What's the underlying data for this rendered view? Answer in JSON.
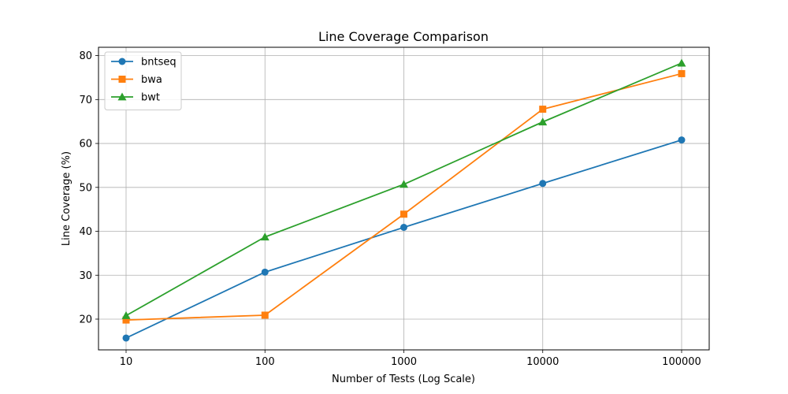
{
  "chart_data": {
    "type": "line",
    "title": "Line Coverage Comparison",
    "xlabel": "Number of Tests (Log Scale)",
    "ylabel": "Line Coverage (%)",
    "x": [
      10,
      100,
      1000,
      10000,
      100000
    ],
    "x_tick_labels": [
      "10",
      "100",
      "1000",
      "10000",
      "100000"
    ],
    "x_scale": "log",
    "y_ticks": [
      20,
      30,
      40,
      50,
      60,
      70,
      80
    ],
    "ylim": [
      13.0,
      81.9
    ],
    "grid": true,
    "legend_position": "top-left",
    "series": [
      {
        "name": "bntseq",
        "color": "#1f77b4",
        "marker": "circle",
        "values": [
          15.7,
          30.7,
          40.9,
          50.9,
          60.8
        ]
      },
      {
        "name": "bwa",
        "color": "#ff7f0e",
        "marker": "square",
        "values": [
          19.8,
          20.9,
          43.9,
          67.8,
          75.9
        ]
      },
      {
        "name": "bwt",
        "color": "#2ca02c",
        "marker": "triangle",
        "values": [
          20.8,
          38.7,
          50.7,
          64.9,
          78.3
        ]
      }
    ]
  }
}
